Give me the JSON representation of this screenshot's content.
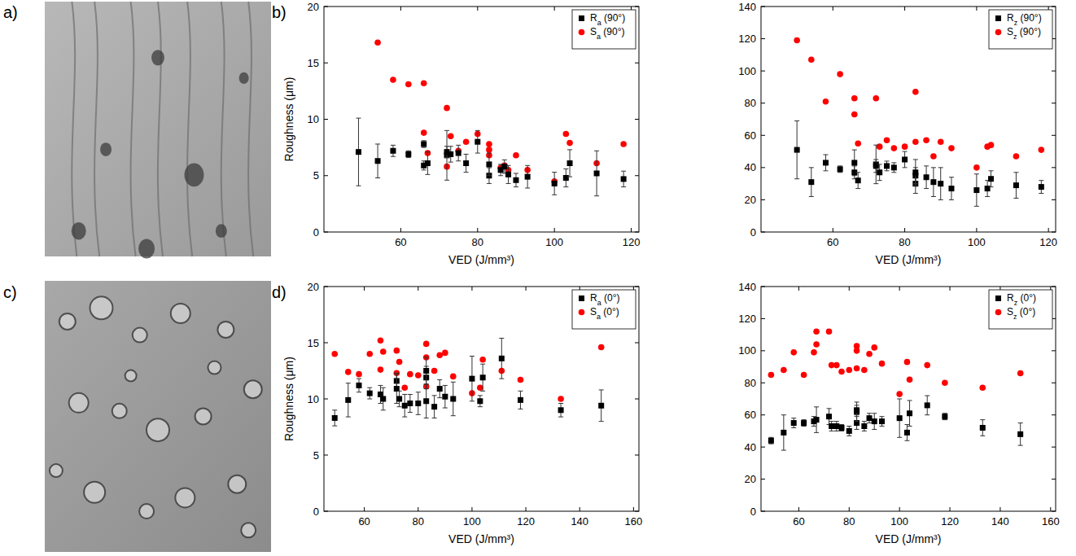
{
  "panel_labels": [
    "a)",
    "b)",
    "c)",
    "d)"
  ],
  "chart_data": [
    {
      "type": "scatter",
      "x_label": "VED (J/mm³)",
      "y_label": "Roughness (μm)",
      "xlim": [
        40,
        122
      ],
      "xticks": [
        60,
        80,
        100,
        120
      ],
      "ylim": [
        0,
        20
      ],
      "yticks": [
        0,
        5,
        10,
        15,
        20
      ],
      "legend": "upper right",
      "series": [
        {
          "name": "Ra (90°)",
          "color": "#000000",
          "marker": "square",
          "x": [
            49,
            54,
            58,
            62,
            66,
            66,
            67,
            72,
            72,
            73,
            75,
            77,
            80,
            83,
            83,
            86,
            87,
            88,
            90,
            93,
            100,
            103,
            104,
            111,
            118
          ],
          "values": [
            7.1,
            6.3,
            7.2,
            6.9,
            7.8,
            5.9,
            6.1,
            6.8,
            7.1,
            6.9,
            7.0,
            6.1,
            8.0,
            5.0,
            6.0,
            5.5,
            5.8,
            5.1,
            4.6,
            4.9,
            4.3,
            4.8,
            6.1,
            5.2,
            4.7
          ],
          "errors": [
            3.0,
            1.5,
            0.5,
            0.3,
            0.3,
            0.4,
            1.0,
            2.2,
            0.5,
            0.7,
            0.7,
            0.8,
            1.0,
            0.7,
            1.0,
            0.5,
            0.6,
            0.8,
            0.6,
            1.0,
            1.0,
            0.8,
            1.2,
            2.0,
            0.7
          ]
        },
        {
          "name": "Sa (90°)",
          "color": "#ff0000",
          "marker": "circle",
          "x": [
            54,
            58,
            62,
            66,
            66,
            67,
            72,
            72,
            73,
            75,
            77,
            80,
            83,
            83,
            83,
            86,
            87,
            88,
            90,
            93,
            100,
            103,
            104,
            111,
            118
          ],
          "values": [
            16.8,
            13.5,
            13.1,
            13.2,
            8.8,
            7.0,
            11.0,
            5.8,
            8.5,
            7.2,
            8.0,
            8.7,
            7.8,
            7.3,
            6.8,
            5.7,
            5.9,
            5.5,
            6.8,
            5.5,
            4.5,
            8.7,
            7.9,
            6.1,
            7.8
          ]
        }
      ]
    },
    {
      "type": "scatter",
      "x_label": "VED (J/mm³)",
      "xlim": [
        40,
        122
      ],
      "xticks": [
        60,
        80,
        100,
        120
      ],
      "ylim": [
        0,
        140
      ],
      "yticks": [
        0,
        20,
        40,
        60,
        80,
        100,
        120,
        140
      ],
      "legend": "upper right",
      "series": [
        {
          "name": "Rz (90°)",
          "color": "#000000",
          "marker": "square",
          "x": [
            50,
            54,
            58,
            62,
            66,
            66,
            67,
            72,
            72,
            73,
            75,
            77,
            80,
            83,
            83,
            83,
            86,
            88,
            90,
            93,
            100,
            103,
            104,
            111,
            118
          ],
          "values": [
            51,
            31,
            43,
            39,
            43,
            37,
            32,
            42,
            41,
            37,
            41,
            40,
            45,
            30,
            35,
            37,
            34,
            31,
            30,
            27,
            26,
            27,
            33,
            29,
            28
          ],
          "errors": [
            18,
            9,
            5,
            2,
            8,
            4,
            5,
            12,
            4,
            5,
            3,
            3,
            5,
            6,
            5,
            8,
            7,
            9,
            10,
            7,
            10,
            5,
            5,
            8,
            4
          ]
        },
        {
          "name": "Sz (90°)",
          "color": "#ff0000",
          "marker": "circle",
          "x": [
            50,
            54,
            58,
            62,
            66,
            66,
            67,
            72,
            73,
            75,
            77,
            80,
            83,
            83,
            86,
            88,
            90,
            93,
            100,
            103,
            104,
            111,
            118
          ],
          "values": [
            119,
            107,
            81,
            98,
            83,
            73,
            55,
            83,
            53,
            57,
            52,
            53,
            87,
            56,
            57,
            47,
            56,
            52,
            40,
            53,
            54,
            47,
            51
          ]
        }
      ]
    },
    {
      "type": "scatter",
      "x_label": "VED (J/mm³)",
      "y_label": "Roughness (μm)",
      "xlim": [
        45,
        162
      ],
      "xticks": [
        60,
        80,
        100,
        120,
        140,
        160
      ],
      "ylim": [
        0,
        20
      ],
      "yticks": [
        0,
        5,
        10,
        15,
        20
      ],
      "legend": "upper right",
      "series": [
        {
          "name": "Ra (0°)",
          "color": "#000000",
          "marker": "square",
          "x": [
            49,
            54,
            58,
            62,
            66,
            67,
            72,
            72,
            73,
            75,
            77,
            80,
            83,
            83,
            83,
            86,
            88,
            90,
            93,
            100,
            103,
            104,
            111,
            118,
            133,
            148
          ],
          "values": [
            8.3,
            9.9,
            11.2,
            10.5,
            10.4,
            10.0,
            11.6,
            10.9,
            10.0,
            9.4,
            9.6,
            9.6,
            9.8,
            11.9,
            12.5,
            9.3,
            10.9,
            10.2,
            10.0,
            11.8,
            9.8,
            11.9,
            13.6,
            9.9,
            9.0,
            9.4
          ],
          "errors": [
            0.7,
            1.5,
            0.6,
            0.5,
            0.8,
            1.0,
            0.7,
            1.3,
            0.7,
            1.0,
            0.8,
            1.0,
            1.5,
            1.0,
            1.2,
            1.0,
            0.8,
            1.0,
            1.5,
            2.0,
            0.5,
            1.2,
            1.8,
            0.8,
            0.6,
            1.4
          ]
        },
        {
          "name": "Sa (0°)",
          "color": "#ff0000",
          "marker": "circle",
          "x": [
            49,
            54,
            58,
            62,
            66,
            66,
            67,
            72,
            72,
            73,
            75,
            77,
            80,
            83,
            83,
            83,
            86,
            88,
            90,
            93,
            100,
            103,
            104,
            111,
            118,
            133,
            148
          ],
          "values": [
            14.0,
            12.4,
            12.2,
            14.0,
            15.2,
            12.6,
            14.2,
            14.3,
            12.3,
            13.3,
            11.0,
            12.2,
            12.1,
            14.9,
            13.7,
            11.1,
            12.5,
            13.9,
            14.1,
            12.0,
            10.5,
            11.0,
            13.5,
            12.5,
            11.7,
            10.0,
            14.6
          ]
        }
      ]
    },
    {
      "type": "scatter",
      "x_label": "VED (J/mm³)",
      "xlim": [
        45,
        162
      ],
      "xticks": [
        60,
        80,
        100,
        120,
        140,
        160
      ],
      "ylim": [
        0,
        140
      ],
      "yticks": [
        0,
        20,
        40,
        60,
        80,
        100,
        120,
        140
      ],
      "legend": "upper right",
      "series": [
        {
          "name": "Rz (0°)",
          "color": "#000000",
          "marker": "square",
          "x": [
            49,
            54,
            58,
            62,
            66,
            67,
            72,
            73,
            75,
            77,
            80,
            83,
            83,
            83,
            86,
            88,
            90,
            93,
            100,
            103,
            104,
            111,
            118,
            133,
            148
          ],
          "values": [
            44,
            49,
            55,
            55,
            56,
            57,
            59,
            53,
            53,
            52,
            50,
            55,
            62,
            63,
            53,
            58,
            56,
            56,
            58,
            49,
            61,
            66,
            59,
            52,
            48
          ],
          "errors": [
            2,
            11,
            3,
            2,
            3,
            8,
            5,
            3,
            3,
            2,
            3,
            4,
            6,
            3,
            3,
            3,
            5,
            3,
            12,
            5,
            8,
            6,
            2,
            5,
            7
          ]
        },
        {
          "name": "Sz (0°)",
          "color": "#ff0000",
          "marker": "circle",
          "x": [
            49,
            54,
            58,
            62,
            66,
            67,
            67,
            72,
            73,
            75,
            77,
            80,
            83,
            83,
            83,
            86,
            88,
            90,
            93,
            100,
            103,
            104,
            111,
            118,
            133,
            148
          ],
          "values": [
            85,
            88,
            99,
            85,
            99,
            112,
            104,
            112,
            91,
            91,
            87,
            88,
            103,
            100,
            89,
            88,
            98,
            102,
            92,
            73,
            93,
            82,
            91,
            80,
            77,
            86
          ]
        }
      ]
    }
  ]
}
